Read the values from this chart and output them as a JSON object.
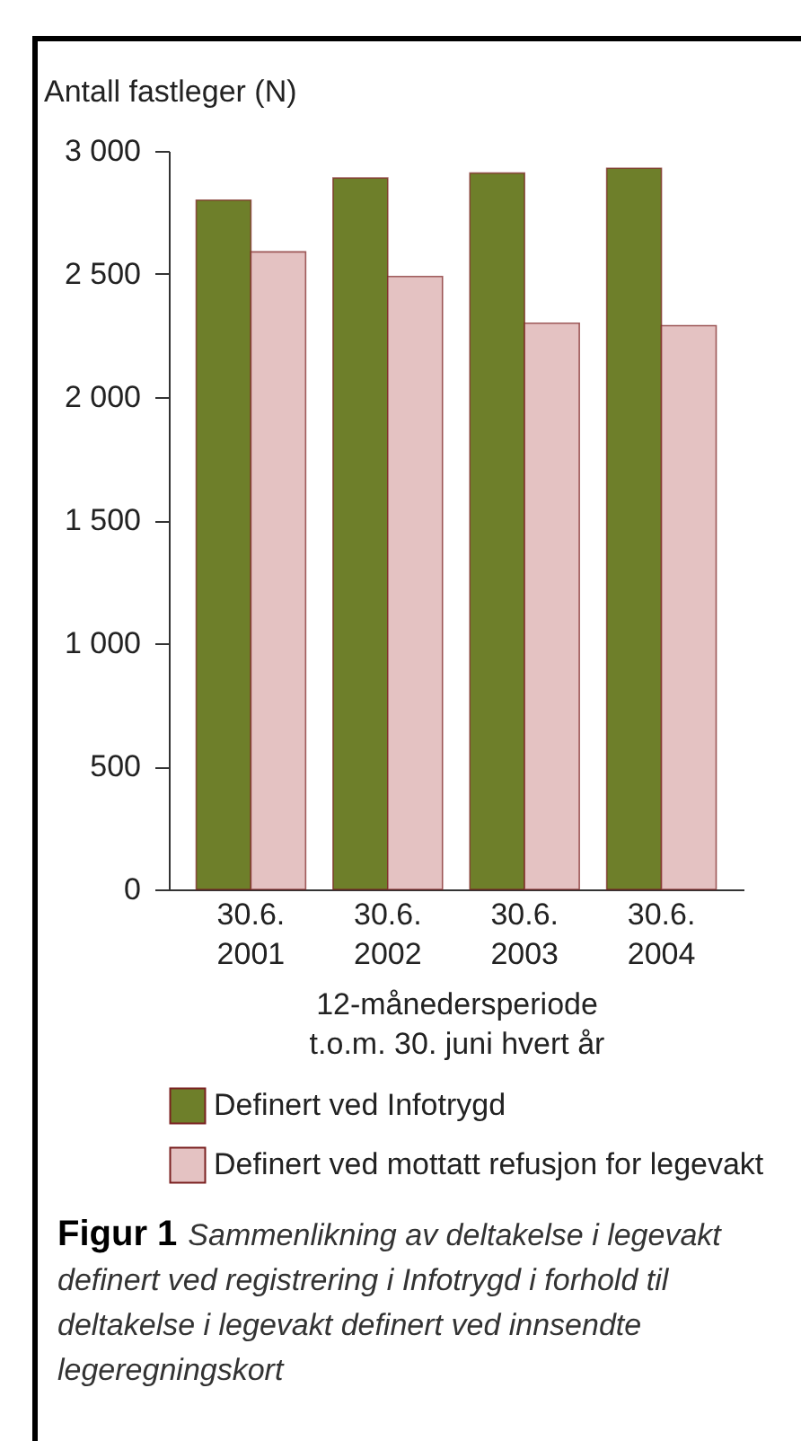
{
  "chart_data": {
    "type": "bar",
    "title": "Figur 1",
    "subtitle": "Sammenlikning av deltakelse i legevakt definert ved registrering i Infotrygd i forhold til deltakelse i legevakt definert ved innsendte legeregningskort",
    "ylabel": "Antall fastleger (N)",
    "xlabel": "12-månedersperiode\nt.o.m. 30. juni hvert år",
    "categories": [
      "30.6.\n2001",
      "30.6.\n2002",
      "30.6.\n2003",
      "30.6.\n2004"
    ],
    "series": [
      {
        "name": "Definert ved Infotrygd",
        "color": "#6e7f2a",
        "values": [
          2800,
          2890,
          2910,
          2930
        ]
      },
      {
        "name": "Definert ved mottatt refusjon for legevakt",
        "color": "#e4c2c2",
        "values": [
          2590,
          2490,
          2300,
          2290
        ]
      }
    ],
    "ylim": [
      0,
      3000
    ],
    "yticks": [
      0,
      500,
      {
        "value": 1000,
        "label": "1 000"
      },
      {
        "value": 1500,
        "label": "1 500"
      },
      {
        "value": 2000,
        "label": "2 000"
      },
      {
        "value": 2500,
        "label": "2 500"
      },
      {
        "value": 3000,
        "label": "3 000"
      }
    ],
    "grid": false,
    "legend": "bottom"
  }
}
